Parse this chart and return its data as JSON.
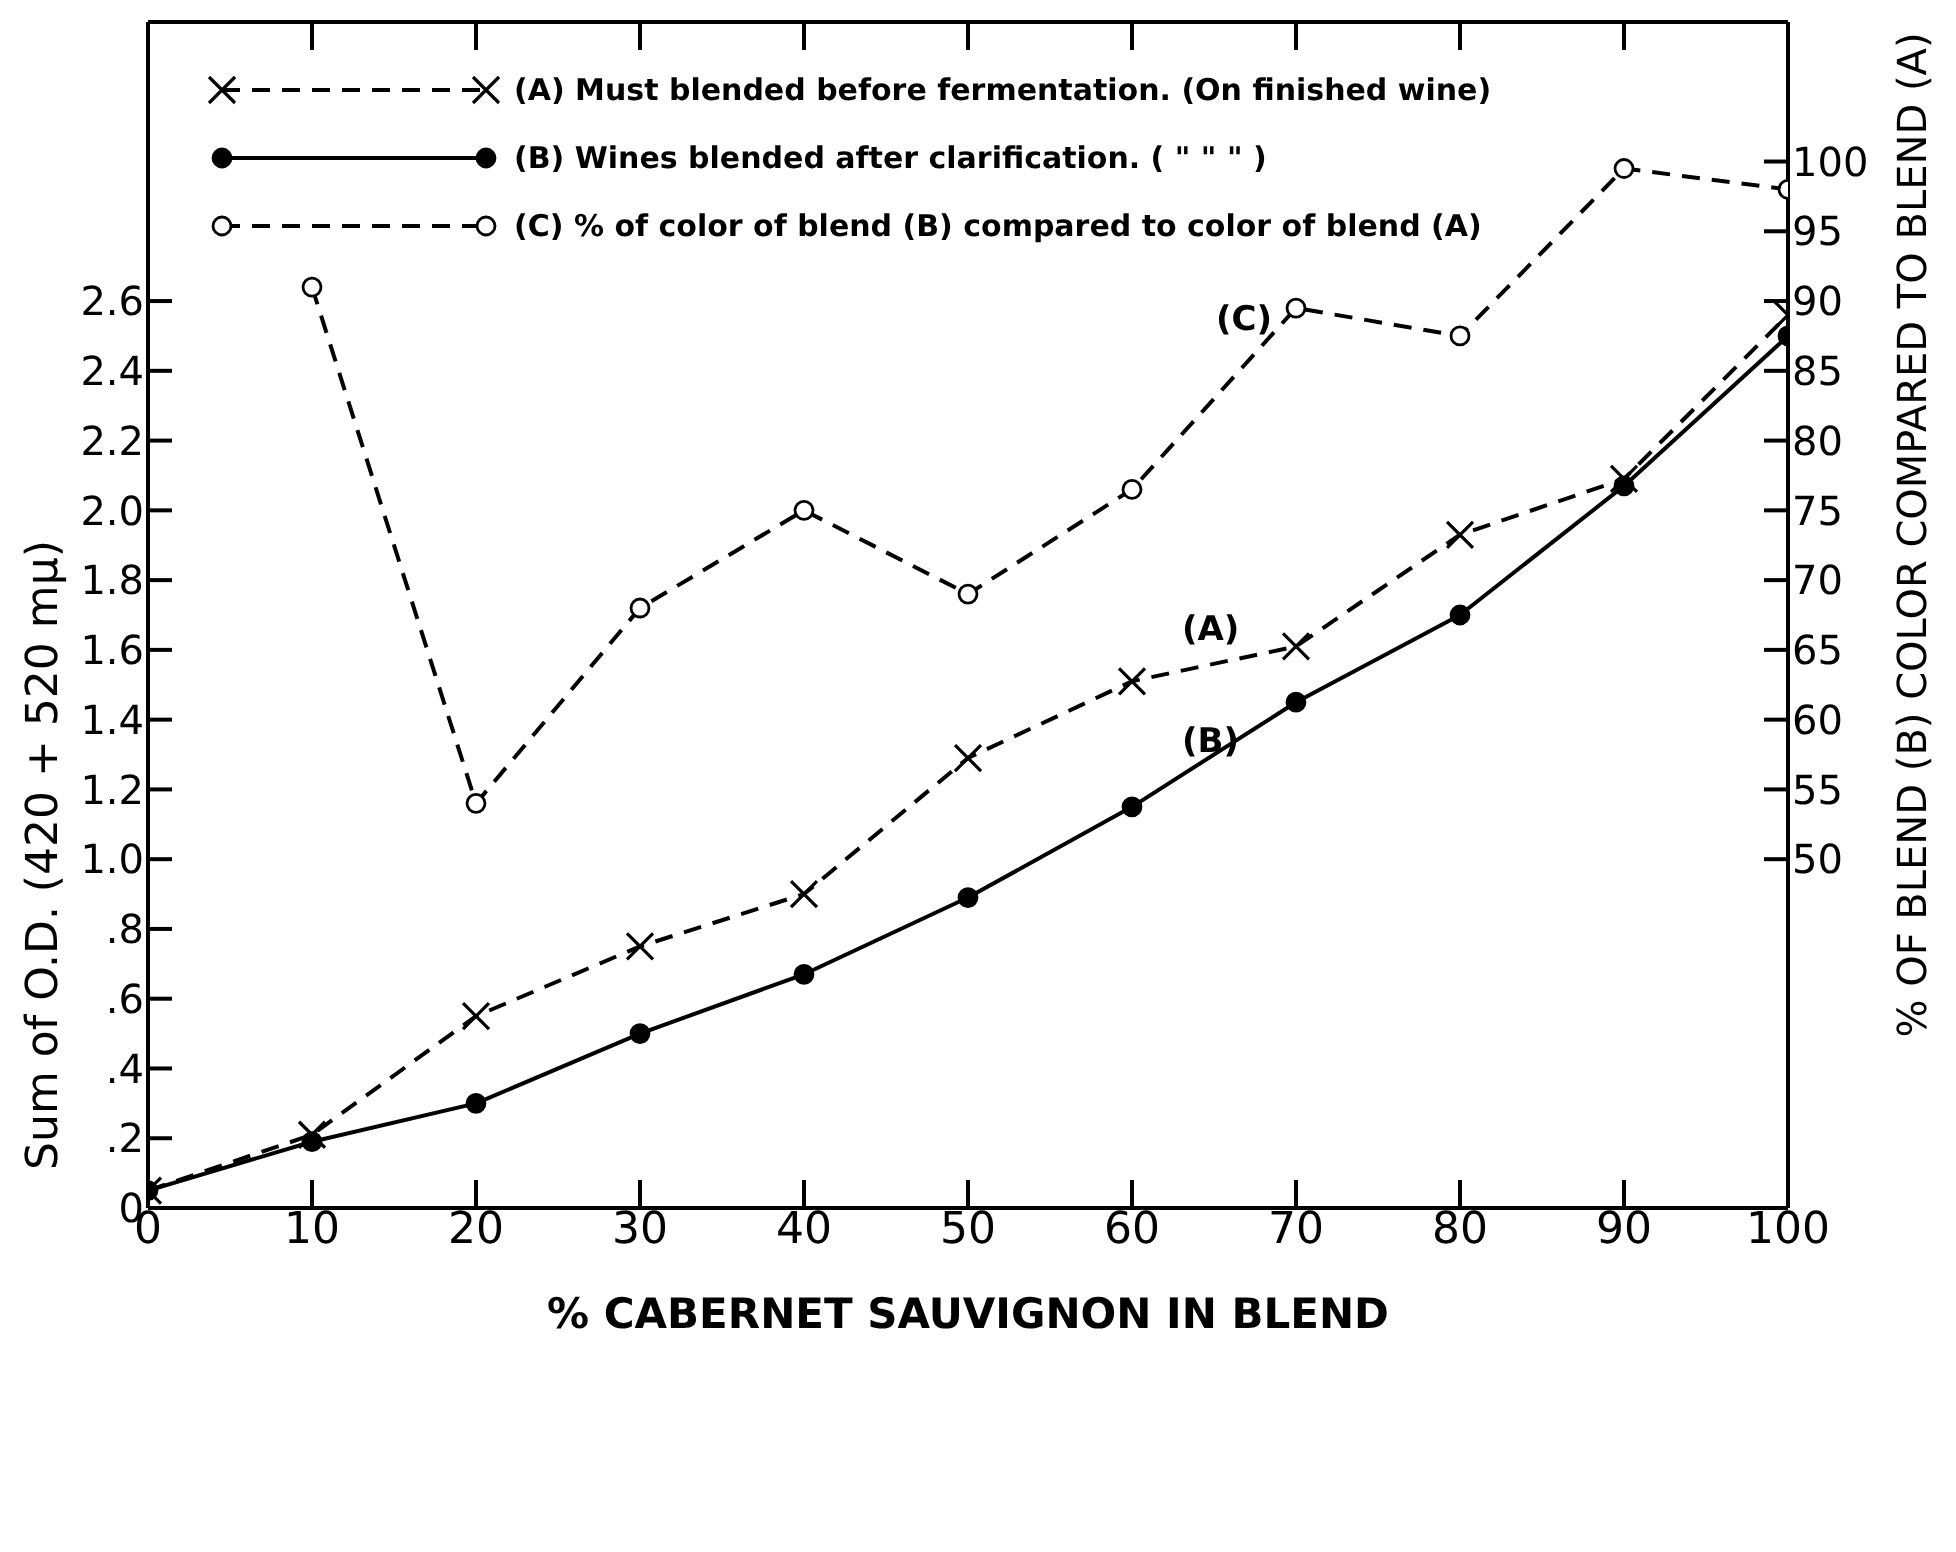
{
  "chart_data": {
    "type": "line",
    "xlabel": "% CABERNET SAUVIGNON IN BLEND",
    "ylabel": "Sum of O.D. (420 + 520 mμ)",
    "y2label": "% OF BLEND (B) COLOR COMPARED TO BLEND (A)",
    "x": [
      0,
      10,
      20,
      30,
      40,
      50,
      60,
      70,
      80,
      90,
      100
    ],
    "series": [
      {
        "name": "(A) Must blended before fermentation.  (On finished wine)",
        "color": "#000000",
        "marker": "cross",
        "line_style": "dashed",
        "values": [
          0.05,
          0.21,
          0.55,
          0.75,
          0.9,
          1.29,
          1.51,
          1.61,
          1.93,
          2.09,
          2.56
        ]
      },
      {
        "name": "(B) Wines blended after clarification.  ( \"     \"     \" )",
        "color": "#000000",
        "marker": "circle",
        "line_style": "solid",
        "values": [
          0.05,
          0.19,
          0.3,
          0.5,
          0.67,
          0.89,
          1.15,
          1.45,
          1.7,
          2.07,
          2.5
        ]
      },
      {
        "name": "(C) % of color of blend (B) compared to color of blend (A)",
        "color": "#000000",
        "marker": "circle",
        "line_style": "dashed",
        "axis": "y2",
        "values": [
          null,
          91,
          54,
          68,
          75,
          69,
          76.5,
          89.5,
          87.5,
          99.5,
          98
        ]
      }
    ],
    "xlim": [
      0,
      100
    ],
    "xticks": [
      0,
      10,
      20,
      30,
      40,
      50,
      60,
      70,
      80,
      90,
      100
    ],
    "ylim": [
      0,
      3.4
    ],
    "yticks": [
      0,
      {
        "value": 0.2,
        "label": ".2"
      },
      {
        "value": 0.4,
        "label": ".4"
      },
      {
        "value": 0.6,
        "label": ".6"
      },
      {
        "value": 0.8,
        "label": ".8"
      },
      {
        "value": 1.0,
        "label": "1.0"
      },
      1.2,
      1.4,
      1.6,
      1.8,
      {
        "value": 2.0,
        "label": "2.0"
      },
      2.2,
      2.4,
      2.6
    ],
    "y2lim": [
      25,
      110
    ],
    "y2ticks": [
      50,
      55,
      60,
      65,
      70,
      75,
      80,
      85,
      90,
      95,
      100
    ],
    "annotations": [
      "(A)",
      "(B)",
      "(C)"
    ],
    "grid": false,
    "legend": "top left"
  }
}
